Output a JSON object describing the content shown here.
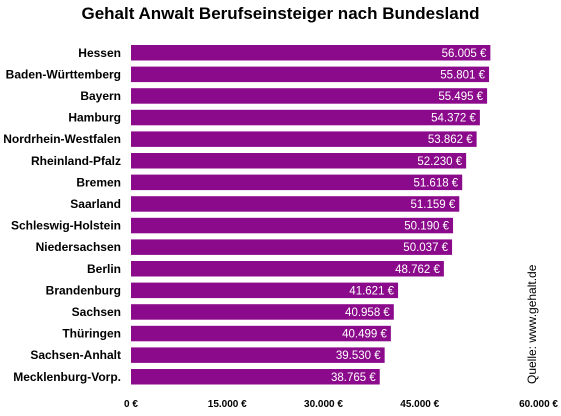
{
  "chart_data": {
    "type": "bar",
    "orientation": "horizontal",
    "title": "Gehalt Anwalt Berufseinsteiger nach Bundesland",
    "categories": [
      "Hessen",
      "Baden-Württemberg",
      "Bayern",
      "Hamburg",
      "Nordrhein-Westfalen",
      "Rheinland-Pfalz",
      "Bremen",
      "Saarland",
      "Schleswig-Holstein",
      "Niedersachsen",
      "Berlin",
      "Brandenburg",
      "Sachsen",
      "Thüringen",
      "Sachsen-Anhalt",
      "Mecklenburg-Vorp."
    ],
    "values": [
      56005,
      55801,
      55495,
      54372,
      53862,
      52230,
      51618,
      51159,
      50190,
      50037,
      48762,
      41621,
      40958,
      40499,
      39530,
      38765
    ],
    "value_labels": [
      "56.005 €",
      "55.801 €",
      "55.495 €",
      "54.372 €",
      "53.862 €",
      "52.230 €",
      "51.618 €",
      "51.159 €",
      "50.190 €",
      "50.037 €",
      "48.762 €",
      "41.621 €",
      "40.958 €",
      "40.499 €",
      "39.530 €",
      "38.765 €"
    ],
    "xlim": [
      0,
      60000
    ],
    "xticks": [
      0,
      15000,
      30000,
      45000,
      60000
    ],
    "xtick_labels": [
      "0 €",
      "15.000 €",
      "30.000 €",
      "45.000 €",
      "60.000 €"
    ],
    "bar_color": "#8b0a8b",
    "grid": false,
    "source": "Quelle: www.gehalt.de"
  }
}
